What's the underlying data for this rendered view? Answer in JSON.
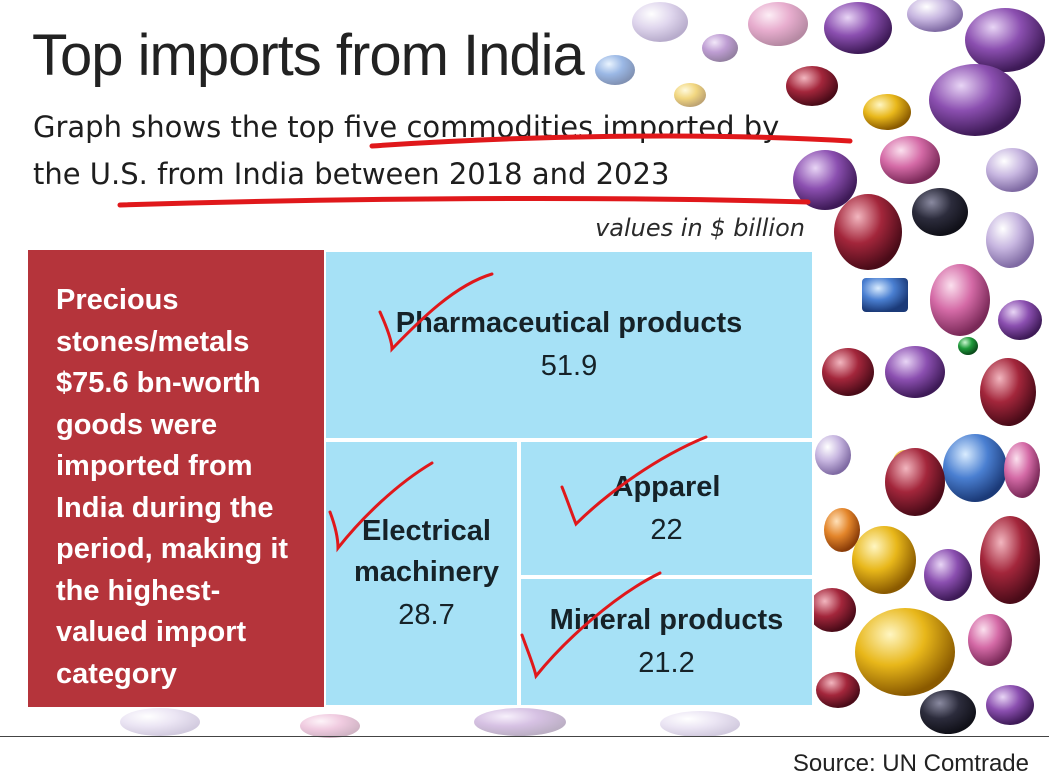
{
  "chart_data": {
    "type": "treemap",
    "title": "Top imports from India",
    "subtitle": "Graph shows the top five commodities imported by the U.S. from India between 2018 and 2023",
    "units": "values in $ billion",
    "source": "Source: UN Comtrade",
    "lead": {
      "category": "Precious stones/metals",
      "value": 75.6,
      "note": "$75.6 bn-worth goods were imported from India during the period, making it the highest-valued import category"
    },
    "items": [
      {
        "category": "Pharmaceutical products",
        "value": 51.9,
        "value_label": "51.9"
      },
      {
        "category": "Electrical machinery",
        "value": 28.7,
        "value_label": "28.7"
      },
      {
        "category": "Apparel",
        "value": 22,
        "value_label": "22"
      },
      {
        "category": "Mineral products",
        "value": 21.2,
        "value_label": "21.2"
      }
    ],
    "colors": {
      "lead": "#b5343b",
      "tile": "#a6e1f6",
      "marker": "#e0181b"
    }
  }
}
